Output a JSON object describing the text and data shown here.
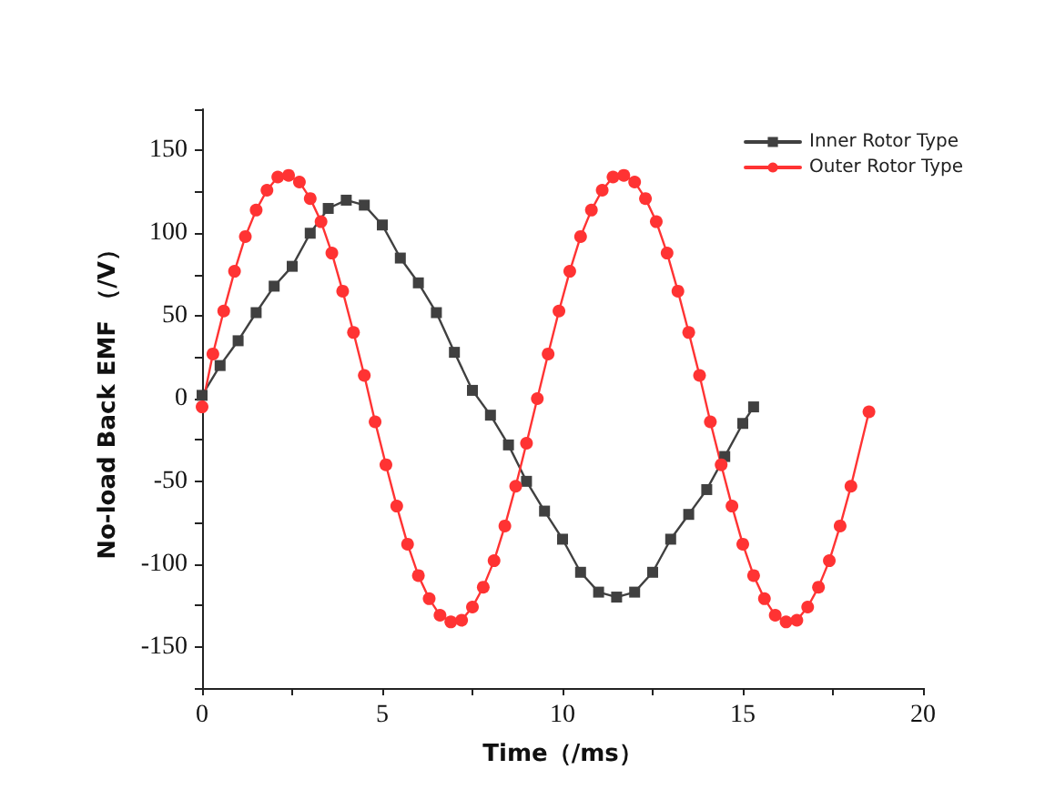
{
  "chart_data": {
    "type": "line",
    "xlabel": "Time（/ms）",
    "ylabel": "No-load Back EMF （/V）",
    "xlim": [
      0,
      20
    ],
    "ylim": [
      -175,
      175
    ],
    "xticks": [
      0,
      {
        "value": 2.5,
        "label": null
      },
      5,
      {
        "value": 7.5,
        "label": null
      },
      10,
      {
        "value": 12.5,
        "label": null
      },
      15,
      {
        "value": 17.5,
        "label": null
      },
      20
    ],
    "yticks": [
      {
        "value": -175,
        "label": null
      },
      -150,
      {
        "value": -125,
        "label": null
      },
      -100,
      {
        "value": -75,
        "label": null
      },
      -50,
      {
        "value": -25,
        "label": null
      },
      0,
      {
        "value": 25,
        "label": null
      },
      50,
      {
        "value": 75,
        "label": null
      },
      100,
      {
        "value": 125,
        "label": null
      },
      150,
      {
        "value": 175,
        "label": null
      }
    ],
    "grid": false,
    "legend": "top right",
    "line_style": "solid",
    "series": [
      {
        "name": "Inner Rotor Type",
        "color": "#404040",
        "marker": "square",
        "x": [
          0,
          0.5,
          1,
          1.5,
          2,
          2.5,
          3,
          3.5,
          4,
          4.5,
          5,
          5.5,
          6,
          6.5,
          7,
          7.5,
          8,
          8.5,
          9,
          9.5,
          10,
          10.5,
          11,
          11.5,
          12,
          12.5,
          13,
          13.5,
          14,
          14.5,
          15,
          15.3
        ],
        "values": [
          2,
          20,
          35,
          52,
          68,
          80,
          100,
          115,
          120,
          117,
          105,
          85,
          70,
          52,
          28,
          5,
          -10,
          -28,
          -50,
          -68,
          -85,
          -105,
          -117,
          -120,
          -117,
          -105,
          -85,
          -70,
          -55,
          -35,
          -15,
          -5
        ]
      },
      {
        "name": "Outer Rotor Type",
        "color": "#ff3333",
        "marker": "circle",
        "x": [
          0,
          0.3,
          0.6,
          0.9,
          1.2,
          1.5,
          1.8,
          2.1,
          2.4,
          2.7,
          3.0,
          3.3,
          3.6,
          3.9,
          4.2,
          4.5,
          4.8,
          5.1,
          5.4,
          5.7,
          6.0,
          6.3,
          6.6,
          6.9,
          7.2,
          7.5,
          7.8,
          8.1,
          8.4,
          8.7,
          9.0,
          9.3,
          9.6,
          9.9,
          10.2,
          10.5,
          10.8,
          11.1,
          11.4,
          11.7,
          12.0,
          12.3,
          12.6,
          12.9,
          13.2,
          13.5,
          13.8,
          14.1,
          14.4,
          14.7,
          15.0,
          15.3,
          15.6,
          15.9,
          16.2,
          16.5,
          16.8,
          17.1,
          17.4,
          17.7,
          18.0,
          18.5
        ],
        "values": [
          -5,
          27,
          53,
          77,
          98,
          114,
          126,
          134,
          135,
          131,
          121,
          107,
          88,
          65,
          40,
          14,
          -14,
          -40,
          -65,
          -88,
          -107,
          -121,
          -131,
          -135,
          -134,
          -126,
          -114,
          -98,
          -77,
          -53,
          -27,
          0,
          27,
          53,
          77,
          98,
          114,
          126,
          134,
          135,
          131,
          121,
          107,
          88,
          65,
          40,
          14,
          -14,
          -40,
          -65,
          -88,
          -107,
          -121,
          -131,
          -135,
          -134,
          -126,
          -114,
          -98,
          -77,
          -53,
          -8
        ]
      }
    ]
  }
}
